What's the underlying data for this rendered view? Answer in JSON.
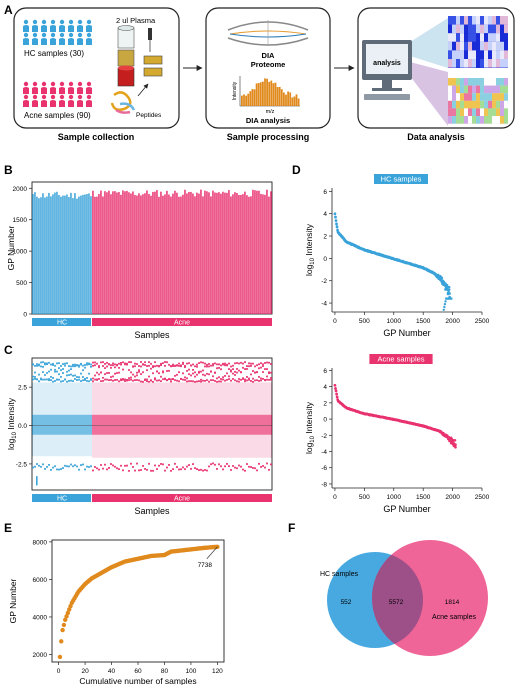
{
  "colors": {
    "hc": "#3aa3d9",
    "hc_light": "#a9d6ef",
    "acne": "#e8336f",
    "acne_light": "#f3a3c0",
    "orange": "#e08a1e",
    "venn_hc": "#48a9e0",
    "venn_acne": "#ec4a86",
    "venn_overlap": "#9d4f88",
    "dark_blue": "#1a2bd6"
  },
  "panel_letters": [
    "A",
    "B",
    "C",
    "D",
    "E",
    "F"
  ],
  "panelA": {
    "hc_label": "HC samples (30)",
    "acne_label": "Acne samples (90)",
    "plasma_label": "2 ul Plasma",
    "peptides_label": "Peptides",
    "proteome_title": "DIA",
    "proteome_sub": "Proteome",
    "intensity_label": "Intensity",
    "mz_label": "m/z",
    "dia_analysis": "DIA analysis",
    "monitor_label": "analysis",
    "stage1": "Sample collection",
    "stage2": "Sample processing",
    "stage3": "Data analysis"
  },
  "chart_data": [
    {
      "id": "B",
      "type": "bar",
      "ylabel": "GP Number",
      "xlabel": "Samples",
      "ylim": [
        0,
        2100
      ],
      "yticks": [
        "0",
        "500",
        "1000",
        "1500",
        "2000"
      ],
      "groups": [
        {
          "name": "HC",
          "n": 30,
          "mean": 1890
        },
        {
          "name": "Acne",
          "n": 90,
          "mean": 1920
        }
      ],
      "values_summary": "120 bars, all approximately 1850-1990"
    },
    {
      "id": "C",
      "type": "box",
      "ylabel": "log10 Intensity",
      "xlabel": "Samples",
      "yticks": [
        "-2.5",
        "0.0",
        "2.5"
      ],
      "groups": [
        {
          "name": "HC",
          "n": 30,
          "median": 0.0,
          "q1": -0.6,
          "q3": 0.7,
          "whisker_low": -2.0,
          "whisker_high": 2.8
        },
        {
          "name": "Acne",
          "n": 90,
          "median": 0.0,
          "q1": -0.6,
          "q3": 0.7,
          "whisker_low": -2.1,
          "whisker_high": 2.8
        }
      ]
    },
    {
      "id": "D-HC",
      "type": "scatter",
      "title": "HC samples",
      "xlabel": "GP Number",
      "ylabel": "log10 Intensity",
      "xlim": [
        -50,
        2500
      ],
      "ylim": [
        -4.8,
        6.3
      ],
      "xticks": [
        "0",
        "500",
        "1000",
        "1500",
        "2000",
        "2500"
      ],
      "yticks": [
        "-4",
        "-2",
        "0",
        "2",
        "4",
        "6"
      ],
      "curve": {
        "x": [
          0,
          50,
          200,
          500,
          1000,
          1500,
          1800,
          1950
        ],
        "y": [
          4.0,
          2.4,
          1.5,
          0.8,
          0.0,
          -0.8,
          -1.6,
          -2.6
        ]
      }
    },
    {
      "id": "D-Acne",
      "type": "scatter",
      "title": "Acne samples",
      "xlabel": "GP Number",
      "ylabel": "log10 Intensity",
      "xlim": [
        -50,
        2500
      ],
      "ylim": [
        -8.5,
        6.3
      ],
      "xticks": [
        "0",
        "500",
        "1000",
        "1500",
        "2000",
        "2500"
      ],
      "yticks": [
        "-8",
        "-6",
        "-4",
        "-2",
        "0",
        "2",
        "4",
        "6"
      ],
      "curve": {
        "x": [
          0,
          50,
          200,
          500,
          1000,
          1500,
          1800,
          2050
        ],
        "y": [
          4.2,
          2.3,
          1.4,
          0.7,
          0.0,
          -0.8,
          -1.5,
          -2.6
        ]
      }
    },
    {
      "id": "E",
      "type": "scatter",
      "xlabel": "Cumulative number of samples",
      "ylabel": "GP Number",
      "xlim": [
        -5,
        125
      ],
      "ylim": [
        1600,
        8100
      ],
      "xticks": [
        "0",
        "20",
        "40",
        "60",
        "80",
        "100",
        "120"
      ],
      "yticks": [
        "2000",
        "4000",
        "6000",
        "8000"
      ],
      "x": [
        1,
        2,
        3,
        5,
        8,
        10,
        15,
        20,
        25,
        30,
        35,
        40,
        50,
        60,
        70,
        80,
        85,
        90,
        100,
        110,
        120
      ],
      "y": [
        1870,
        2700,
        3300,
        3850,
        4400,
        4750,
        5350,
        5750,
        6050,
        6250,
        6450,
        6650,
        6950,
        7100,
        7250,
        7300,
        7480,
        7520,
        7600,
        7680,
        7738
      ],
      "annotation": "7738"
    },
    {
      "id": "F",
      "type": "venn",
      "sets": [
        {
          "name": "HC samples",
          "only": 552
        },
        {
          "name": "Acne samples",
          "only": 1814
        }
      ],
      "overlap": 5572
    }
  ]
}
